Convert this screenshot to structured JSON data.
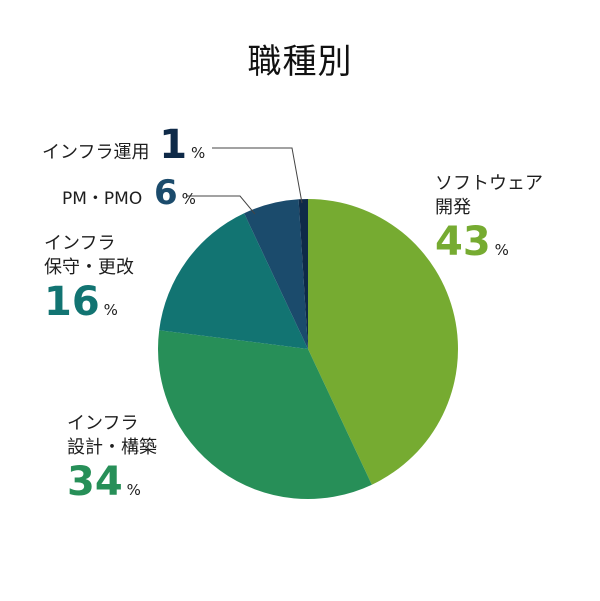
{
  "title": "職種別",
  "unit": "%",
  "chart_data": {
    "type": "pie",
    "title": "職種別",
    "slices": [
      {
        "label": "ソフトウェア開発",
        "label_lines": [
          "ソフトウェア",
          "開発"
        ],
        "value": 43,
        "color": "#76ab31"
      },
      {
        "label": "インフラ設計・構築",
        "label_lines": [
          "インフラ",
          "設計・構築"
        ],
        "value": 34,
        "color": "#278f58"
      },
      {
        "label": "インフラ保守・更改",
        "label_lines": [
          "インフラ",
          "保守・更改"
        ],
        "value": 16,
        "color": "#127472"
      },
      {
        "label": "PM・PMO",
        "label_lines": [
          "PM・PMO"
        ],
        "value": 6,
        "color": "#1b4b6c"
      },
      {
        "label": "インフラ運用",
        "label_lines": [
          "インフラ運用"
        ],
        "value": 1,
        "color": "#0e2a48"
      }
    ]
  }
}
